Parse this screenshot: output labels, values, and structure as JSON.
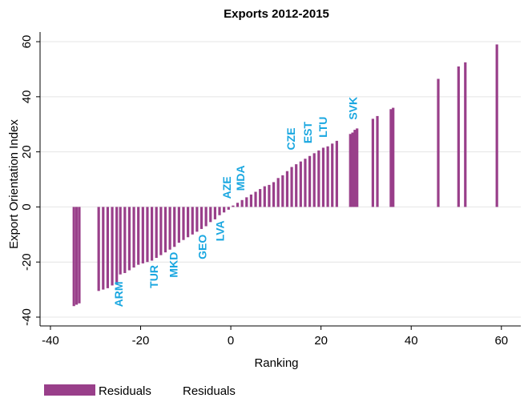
{
  "chart_data": {
    "type": "spike",
    "title": "Exports 2012-2015",
    "x_label": "Ranking",
    "y_label": "Export Orientation Index",
    "xlim": [
      -42.3,
      64.3
    ],
    "ylim": [
      -43.2,
      63.5
    ],
    "xticks": [
      -40,
      -20,
      0,
      20,
      40,
      60
    ],
    "yticks": [
      -40,
      -20,
      0,
      20,
      40,
      60
    ],
    "grid": true,
    "legend_label": "Residuals",
    "series": [
      {
        "name": "Residuals",
        "color": "#993f8a",
        "x": [
          -34.8,
          -34.2,
          -33.6,
          -29.3,
          -28.3,
          -27.3,
          -26.3,
          -25.3,
          -24.5,
          -23.5,
          -22.5,
          -21.5,
          -20.5,
          -19.5,
          -18.5,
          -17.5,
          -16.5,
          -15.5,
          -14.5,
          -13.5,
          -12.5,
          -11.5,
          -10.5,
          -9.5,
          -8.5,
          -7.5,
          -6.5,
          -5.5,
          -4.5,
          -3.5,
          -2.5,
          -1.5,
          -0.5,
          0.5,
          1.5,
          2.5,
          3.5,
          4.5,
          5.5,
          6.5,
          7.5,
          8.5,
          9.5,
          10.5,
          11.5,
          12.5,
          13.5,
          14.5,
          15.5,
          16.5,
          17.5,
          18.5,
          19.5,
          20.5,
          21.5,
          22.5,
          23.5,
          26.5,
          27,
          27.5,
          28,
          31.5,
          32.5,
          35.5,
          36,
          46,
          50.5,
          52,
          59
        ],
        "values": [
          -36,
          -35.5,
          -35,
          -30.5,
          -30,
          -29.5,
          -28.5,
          -28,
          -24.5,
          -24,
          -23,
          -22,
          -21,
          -20.5,
          -20,
          -19.5,
          -18.5,
          -17.5,
          -16.5,
          -15.5,
          -14.5,
          -13,
          -12,
          -11,
          -10,
          -9,
          -8,
          -7,
          -5.5,
          -4.5,
          -3,
          -2,
          -1,
          0.5,
          1.5,
          2.5,
          3.5,
          4.5,
          5.5,
          6.5,
          7.5,
          8,
          9,
          10.5,
          11.5,
          13,
          14.5,
          15.5,
          16.5,
          17.5,
          18.5,
          19.5,
          20.5,
          21.5,
          22,
          23,
          24,
          26.5,
          27,
          28,
          28.5,
          32,
          33,
          35.5,
          36,
          46.5,
          51,
          52.5,
          59
        ]
      }
    ],
    "annotations": [
      {
        "text": "ARM",
        "x": -24,
        "y": -31.7
      },
      {
        "text": "TUR",
        "x": -16.2,
        "y": -25.3
      },
      {
        "text": "MKD",
        "x": -11.8,
        "y": -21
      },
      {
        "text": "GEO",
        "x": -5.4,
        "y": -14.5
      },
      {
        "text": "LVA",
        "x": -1.5,
        "y": -8.7
      },
      {
        "text": "AZE",
        "x": 0,
        "y": 7
      },
      {
        "text": "MDA",
        "x": 3,
        "y": 10.5
      },
      {
        "text": "CZE",
        "x": 14.2,
        "y": 24.7
      },
      {
        "text": "EST",
        "x": 17.9,
        "y": 27
      },
      {
        "text": "LTU",
        "x": 21.3,
        "y": 29
      },
      {
        "text": "SVK",
        "x": 28,
        "y": 35.8
      }
    ]
  }
}
